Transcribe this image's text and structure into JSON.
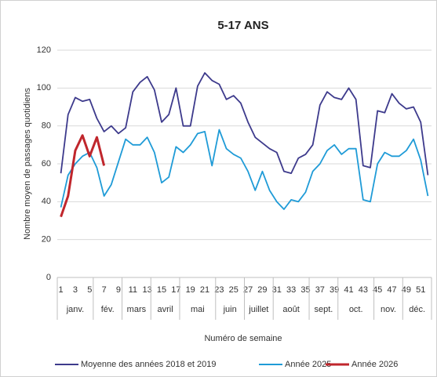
{
  "chart_data": {
    "type": "line",
    "title": "5-17 ANS",
    "y_label": "Nombre moyen de passages quotidiens",
    "x_label": "Numéro de semaine",
    "x": [
      1,
      2,
      3,
      4,
      5,
      6,
      7,
      8,
      9,
      10,
      11,
      12,
      13,
      14,
      15,
      16,
      17,
      18,
      19,
      20,
      21,
      22,
      23,
      24,
      25,
      26,
      27,
      28,
      29,
      30,
      31,
      32,
      33,
      34,
      35,
      36,
      37,
      38,
      39,
      40,
      41,
      42,
      43,
      44,
      45,
      46,
      47,
      48,
      49,
      50,
      51,
      52
    ],
    "xlim": [
      0.5,
      52.5
    ],
    "xticks": [
      1,
      3,
      5,
      7,
      9,
      11,
      13,
      15,
      17,
      19,
      21,
      23,
      25,
      27,
      29,
      31,
      33,
      35,
      37,
      39,
      41,
      43,
      45,
      47,
      49,
      51
    ],
    "groups": [
      {
        "label": "janv.",
        "first": 1,
        "last": 5
      },
      {
        "label": "fév.",
        "first": 6,
        "last": 9
      },
      {
        "label": "mars",
        "first": 10,
        "last": 13
      },
      {
        "label": "avril",
        "first": 14,
        "last": 17
      },
      {
        "label": "mai",
        "first": 18,
        "last": 22
      },
      {
        "label": "juin",
        "first": 23,
        "last": 26
      },
      {
        "label": "juillet",
        "first": 27,
        "last": 30
      },
      {
        "label": "août",
        "first": 31,
        "last": 35
      },
      {
        "label": "sept.",
        "first": 36,
        "last": 39
      },
      {
        "label": "oct.",
        "first": 40,
        "last": 44
      },
      {
        "label": "nov.",
        "first": 45,
        "last": 48
      },
      {
        "label": "déc.",
        "first": 49,
        "last": 52
      }
    ],
    "ylim": [
      0,
      120
    ],
    "yticks": [
      0,
      20,
      40,
      60,
      80,
      100,
      120
    ],
    "grid": true,
    "series": [
      {
        "name": "Moyenne des années 2018 et 2019",
        "color": "#3d3a8c",
        "values": [
          55,
          86,
          95,
          93,
          94,
          84,
          77,
          80,
          76,
          79,
          98,
          103,
          106,
          99,
          82,
          86,
          100,
          80,
          80,
          101,
          108,
          104,
          102,
          94,
          96,
          92,
          82,
          74,
          71,
          68,
          66,
          56,
          55,
          63,
          65,
          70,
          91,
          98,
          95,
          94,
          100,
          94,
          59,
          58,
          88,
          87,
          97,
          92,
          89,
          90,
          82,
          54
        ]
      },
      {
        "name": "Année 2025",
        "color": "#1f9bd7",
        "values": [
          37,
          54,
          60,
          64,
          66,
          58,
          43,
          49,
          61,
          73,
          70,
          70,
          74,
          66,
          50,
          53,
          69,
          66,
          70,
          76,
          77,
          59,
          78,
          68,
          65,
          63,
          56,
          46,
          56,
          46,
          40,
          36,
          41,
          40,
          45,
          56,
          60,
          67,
          70,
          65,
          68,
          68,
          41,
          40,
          60,
          66,
          64,
          64,
          67,
          73,
          62,
          43
        ]
      },
      {
        "name": "Année 2026",
        "color": "#c0262c",
        "values": [
          32,
          43,
          67,
          75,
          64,
          74,
          59,
          null,
          null,
          null,
          null,
          null,
          null,
          null,
          null,
          null,
          null,
          null,
          null,
          null,
          null,
          null,
          null,
          null,
          null,
          null,
          null,
          null,
          null,
          null,
          null,
          null,
          null,
          null,
          null,
          null,
          null,
          null,
          null,
          null,
          null,
          null,
          null,
          null,
          null,
          null,
          null,
          null,
          null,
          null,
          null,
          null
        ]
      }
    ]
  }
}
